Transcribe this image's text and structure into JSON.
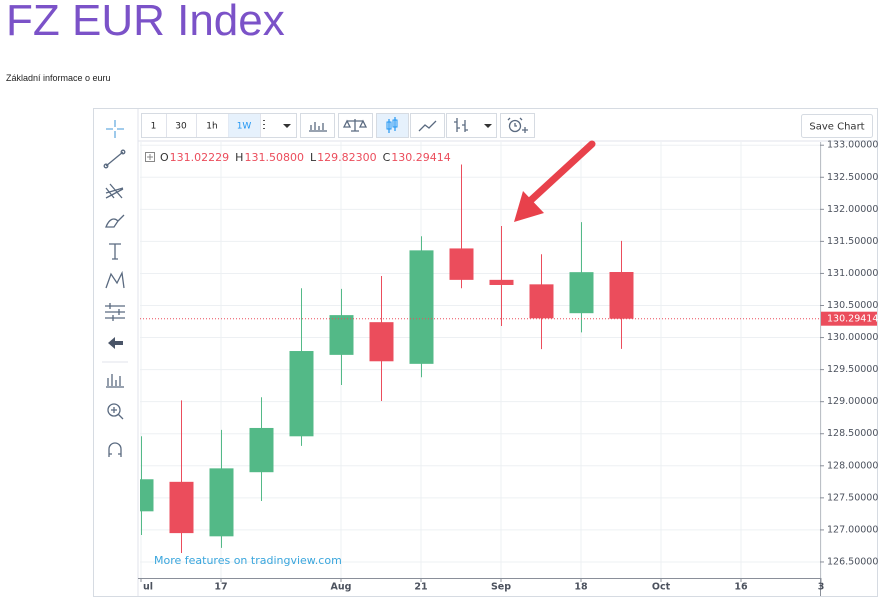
{
  "header": {
    "title": "FZ EUR Index",
    "subtitle": "Základní informace o euru"
  },
  "toolbar": {
    "intervals": [
      "1",
      "30",
      "1h",
      "1W"
    ],
    "active_interval": 3,
    "save": "Save Chart"
  },
  "chart_data": {
    "type": "candlestick",
    "up_color": "#53b987",
    "down_color": "#eb4d5c",
    "legend": [
      {
        "key": "O",
        "label": "131.02229"
      },
      {
        "key": "H",
        "label": "131.50800"
      },
      {
        "key": "L",
        "label": "129.82300"
      },
      {
        "key": "C",
        "label": "130.29414"
      }
    ],
    "open": [
      127.29,
      127.75,
      126.9,
      127.9,
      128.46,
      129.73,
      130.24,
      129.59,
      131.39,
      130.9,
      130.83,
      130.38,
      131.02229
    ],
    "high": [
      128.46,
      129.02,
      128.56,
      129.07,
      130.77,
      130.76,
      130.96,
      131.58,
      132.7,
      131.74,
      131.3,
      131.8,
      131.508
    ],
    "low": [
      126.92,
      126.64,
      126.72,
      127.45,
      128.31,
      129.26,
      129.01,
      129.38,
      130.77,
      130.18,
      129.82,
      130.08,
      129.823
    ],
    "close": [
      127.79,
      126.95,
      127.96,
      128.59,
      129.79,
      130.35,
      129.63,
      131.36,
      130.9,
      130.82,
      130.3,
      131.02,
      130.29414
    ],
    "last_price": 130.29414,
    "ylim": [
      126.25,
      133.05
    ],
    "yticks": [
      {
        "value": 126.5,
        "label": "126.50000"
      },
      {
        "value": 127,
        "label": "127.00000"
      },
      {
        "value": 127.5,
        "label": "127.50000"
      },
      {
        "value": 128,
        "label": "128.00000"
      },
      {
        "value": 128.5,
        "label": "128.50000"
      },
      {
        "value": 129,
        "label": "129.00000"
      },
      {
        "value": 129.5,
        "label": "129.50000"
      },
      {
        "value": 130,
        "label": "130.00000"
      },
      {
        "value": 130.5,
        "label": "130.50000"
      },
      {
        "value": 131,
        "label": "131.00000"
      },
      {
        "value": 131.5,
        "label": "131.50000"
      },
      {
        "value": 132,
        "label": "132.00000"
      },
      {
        "value": 132.5,
        "label": "132.50000"
      },
      {
        "value": 133,
        "label": "133.00000"
      }
    ],
    "xlim": [
      0,
      17
    ],
    "xticks": [
      {
        "value": 0,
        "label": "ul"
      },
      {
        "value": 2,
        "label": "17"
      },
      {
        "value": 5,
        "label": "Aug"
      },
      {
        "value": 7,
        "label": "21"
      },
      {
        "value": 9,
        "label": "Sep"
      },
      {
        "value": 11,
        "label": "18"
      },
      {
        "value": 13,
        "label": "Oct"
      },
      {
        "value": 15,
        "label": "16"
      },
      {
        "value": 17,
        "label": "3"
      }
    ],
    "grid": true,
    "watermark": "More features on tradingview.com"
  }
}
